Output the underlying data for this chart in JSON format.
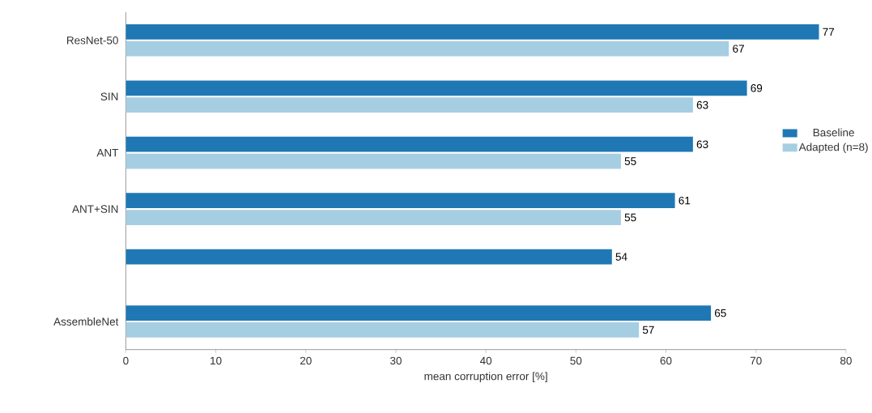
{
  "chart_data": {
    "type": "bar",
    "orientation": "horizontal",
    "xlabel": "mean corruption error [%]",
    "categories": [
      "ResNet-50",
      "SIN",
      "ANT",
      "ANT+SIN",
      null,
      "AssembleNet"
    ],
    "series": [
      {
        "name": "Baseline",
        "color": "#1f78b4",
        "values": [
          77,
          69,
          63,
          61,
          54,
          65
        ]
      },
      {
        "name": "Adapted (n=8)",
        "color": "#a6cee3",
        "values": [
          67,
          63,
          55,
          55,
          null,
          57
        ]
      }
    ],
    "xlim": [
      0,
      80
    ],
    "xticks": [
      0,
      10,
      20,
      30,
      40,
      50,
      60,
      70,
      80
    ],
    "data_labels": true,
    "legend": "right",
    "grid": false
  }
}
